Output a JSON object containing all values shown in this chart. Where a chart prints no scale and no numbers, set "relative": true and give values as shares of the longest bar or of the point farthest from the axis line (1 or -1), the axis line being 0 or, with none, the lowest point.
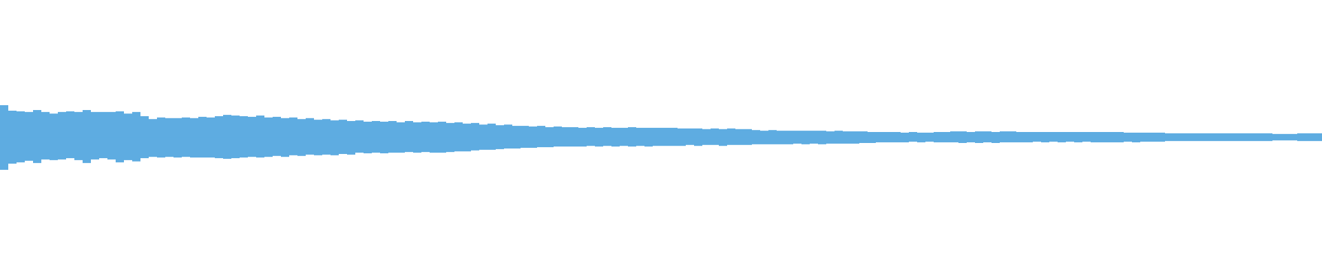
{
  "chart_data": [
    {
      "type": "bar",
      "relative": true,
      "categories": [
        null,
        null,
        null,
        null,
        null,
        null,
        null,
        null,
        null,
        null,
        null,
        null,
        null,
        null,
        null,
        null,
        null,
        null,
        null,
        null,
        null,
        null,
        null,
        null,
        null,
        null,
        null,
        null,
        null,
        null,
        null,
        null,
        null,
        null,
        null,
        null,
        null,
        null,
        null,
        null,
        null,
        null,
        null,
        null,
        null,
        null,
        null,
        null,
        null,
        null,
        null,
        null,
        null,
        null,
        null,
        null,
        null,
        null,
        null,
        null,
        null,
        null,
        null,
        null,
        null,
        null,
        null,
        null,
        null,
        null,
        null,
        null,
        null,
        null,
        null,
        null,
        null,
        null,
        null,
        null,
        null,
        null,
        null,
        null,
        null,
        null,
        null,
        null,
        null,
        null,
        null,
        null,
        null,
        null,
        null,
        null,
        null,
        null,
        null,
        null,
        null,
        null,
        null,
        null,
        null,
        null,
        null,
        null,
        null,
        null,
        null,
        null,
        null,
        null,
        null,
        null,
        null,
        null,
        null,
        null,
        null,
        null,
        null,
        null,
        null,
        null,
        null,
        null,
        null,
        null,
        null,
        null,
        null,
        null,
        null,
        null,
        null,
        null,
        null,
        null,
        null,
        null,
        null,
        null,
        null,
        null,
        null,
        null,
        null,
        null,
        null,
        null,
        null,
        null,
        null,
        null,
        null,
        null,
        null,
        null
      ],
      "series": [
        {
          "color": "#5eace1",
          "values": [
            1.0,
            0.83,
            0.81,
            0.79,
            0.85,
            0.79,
            0.74,
            0.79,
            0.81,
            0.79,
            0.85,
            0.79,
            0.79,
            0.79,
            0.81,
            0.74,
            0.79,
            0.66,
            0.57,
            0.62,
            0.6,
            0.6,
            0.62,
            0.6,
            0.64,
            0.62,
            0.66,
            0.7,
            0.68,
            0.66,
            0.64,
            0.68,
            0.62,
            0.64,
            0.6,
            0.62,
            0.57,
            0.6,
            0.55,
            0.57,
            0.53,
            0.55,
            0.51,
            0.53,
            0.49,
            0.51,
            0.49,
            0.51,
            0.47,
            0.51,
            0.47,
            0.49,
            0.47,
            0.49,
            0.45,
            0.47,
            0.43,
            0.45,
            0.4,
            0.43,
            0.38,
            0.4,
            0.36,
            0.36,
            0.34,
            0.36,
            0.32,
            0.34,
            0.32,
            0.32,
            0.3,
            0.32,
            0.3,
            0.32,
            0.3,
            0.3,
            0.32,
            0.3,
            0.3,
            0.3,
            0.3,
            0.3,
            0.28,
            0.28,
            0.28,
            0.26,
            0.28,
            0.26,
            0.28,
            0.26,
            0.26,
            0.23,
            0.21,
            0.23,
            0.21,
            0.21,
            0.21,
            0.21,
            0.21,
            0.21,
            0.19,
            0.21,
            0.19,
            0.19,
            0.19,
            0.17,
            0.17,
            0.17,
            0.17,
            0.15,
            0.17,
            0.15,
            0.15,
            0.17,
            0.17,
            0.19,
            0.19,
            0.17,
            0.19,
            0.19,
            0.17,
            0.19,
            0.19,
            0.17,
            0.17,
            0.17,
            0.17,
            0.17,
            0.17,
            0.17,
            0.17,
            0.17,
            0.17,
            0.17,
            0.17,
            0.17,
            0.15,
            0.15,
            0.15,
            0.15,
            0.15,
            0.13,
            0.13,
            0.13,
            0.13,
            0.13,
            0.13,
            0.13,
            0.13,
            0.13,
            0.13,
            0.13,
            0.13,
            0.13,
            0.11,
            0.11,
            0.11,
            0.13,
            0.13,
            0.13
          ]
        }
      ]
    },
    {
      "type": "bar",
      "relative": true,
      "categories": [
        null,
        null,
        null,
        null,
        null,
        null,
        null,
        null,
        null,
        null,
        null,
        null,
        null,
        null,
        null,
        null,
        null,
        null,
        null,
        null,
        null,
        null,
        null,
        null,
        null,
        null,
        null,
        null,
        null,
        null,
        null,
        null,
        null,
        null,
        null,
        null,
        null,
        null,
        null,
        null,
        null,
        null,
        null,
        null,
        null,
        null,
        null,
        null,
        null,
        null,
        null,
        null,
        null,
        null,
        null,
        null,
        null,
        null,
        null,
        null,
        null,
        null,
        null,
        null,
        null,
        null,
        null,
        null,
        null,
        null,
        null,
        null,
        null,
        null,
        null,
        null,
        null,
        null,
        null,
        null,
        null,
        null,
        null,
        null,
        null,
        null,
        null,
        null,
        null,
        null,
        null,
        null,
        null,
        null,
        null,
        null,
        null,
        null,
        null,
        null,
        null,
        null,
        null,
        null,
        null,
        null,
        null,
        null,
        null,
        null,
        null,
        null,
        null,
        null,
        null,
        null,
        null,
        null,
        null,
        null,
        null,
        null,
        null,
        null,
        null,
        null,
        null,
        null,
        null,
        null,
        null,
        null,
        null,
        null,
        null,
        null,
        null,
        null,
        null,
        null,
        null,
        null,
        null,
        null,
        null,
        null,
        null,
        null,
        null,
        null,
        null,
        null,
        null,
        null,
        null,
        null,
        null,
        null,
        null,
        null
      ],
      "series": [
        {
          "color": "#5eace1",
          "values": [
            -1.0,
            -0.81,
            -0.77,
            -0.72,
            -0.79,
            -0.68,
            -0.7,
            -0.68,
            -0.64,
            -0.7,
            -0.79,
            -0.68,
            -0.64,
            -0.68,
            -0.77,
            -0.7,
            -0.74,
            -0.64,
            -0.6,
            -0.62,
            -0.6,
            -0.62,
            -0.6,
            -0.62,
            -0.62,
            -0.62,
            -0.64,
            -0.66,
            -0.64,
            -0.62,
            -0.6,
            -0.62,
            -0.6,
            -0.57,
            -0.6,
            -0.55,
            -0.57,
            -0.53,
            -0.55,
            -0.53,
            -0.55,
            -0.51,
            -0.53,
            -0.47,
            -0.49,
            -0.47,
            -0.49,
            -0.47,
            -0.47,
            -0.45,
            -0.47,
            -0.45,
            -0.47,
            -0.47,
            -0.45,
            -0.43,
            -0.43,
            -0.4,
            -0.38,
            -0.38,
            -0.36,
            -0.34,
            -0.34,
            -0.32,
            -0.32,
            -0.3,
            -0.3,
            -0.28,
            -0.28,
            -0.28,
            -0.28,
            -0.26,
            -0.28,
            -0.26,
            -0.28,
            -0.26,
            -0.28,
            -0.26,
            -0.28,
            -0.26,
            -0.26,
            -0.26,
            -0.26,
            -0.23,
            -0.26,
            -0.23,
            -0.23,
            -0.26,
            -0.23,
            -0.23,
            -0.23,
            -0.21,
            -0.21,
            -0.21,
            -0.21,
            -0.21,
            -0.19,
            -0.21,
            -0.19,
            -0.21,
            -0.19,
            -0.19,
            -0.19,
            -0.19,
            -0.17,
            -0.17,
            -0.15,
            -0.15,
            -0.15,
            -0.15,
            -0.13,
            -0.15,
            -0.13,
            -0.15,
            -0.15,
            -0.15,
            -0.17,
            -0.15,
            -0.17,
            -0.15,
            -0.17,
            -0.15,
            -0.15,
            -0.15,
            -0.15,
            -0.13,
            -0.15,
            -0.13,
            -0.15,
            -0.13,
            -0.15,
            -0.13,
            -0.15,
            -0.15,
            -0.15,
            -0.15,
            -0.13,
            -0.15,
            -0.13,
            -0.13,
            -0.13,
            -0.11,
            -0.11,
            -0.11,
            -0.11,
            -0.11,
            -0.11,
            -0.11,
            -0.11,
            -0.11,
            -0.11,
            -0.11,
            -0.11,
            -0.11,
            -0.09,
            -0.09,
            -0.09,
            -0.11,
            -0.11,
            -0.11
          ]
        }
      ]
    }
  ]
}
